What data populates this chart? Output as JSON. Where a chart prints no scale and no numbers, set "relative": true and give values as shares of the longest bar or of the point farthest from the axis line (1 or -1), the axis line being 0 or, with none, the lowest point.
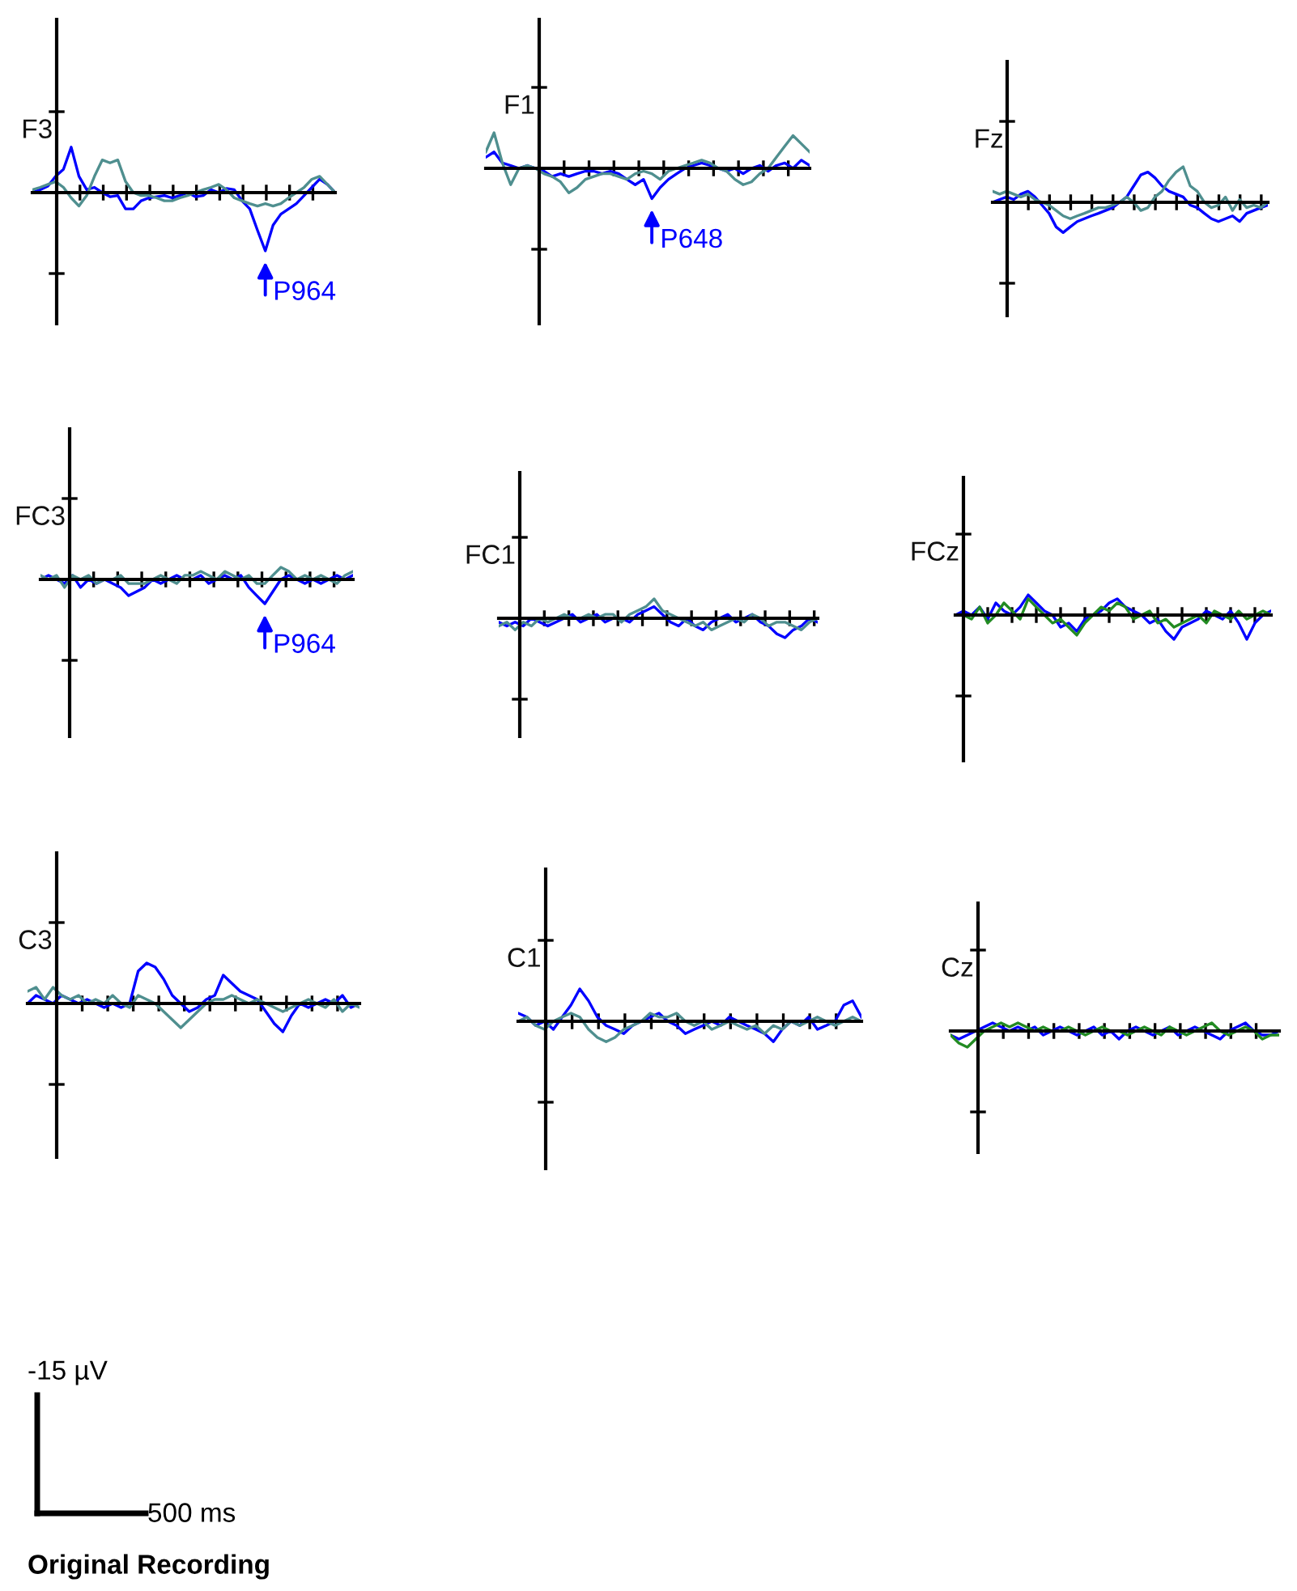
{
  "chart_data": [
    {
      "type": "line",
      "title": "F3",
      "relative": true,
      "categories": [
        null,
        null,
        null,
        null,
        null,
        null,
        null,
        null,
        null,
        null,
        null,
        null,
        null,
        null,
        null,
        null,
        null,
        null,
        null,
        null,
        null,
        null,
        null,
        null,
        null,
        null,
        null,
        null,
        null,
        null,
        null,
        null,
        null,
        null,
        null,
        null,
        null,
        null,
        null,
        null
      ],
      "annotations": [
        "P964"
      ],
      "series": [
        {
          "color": "#0000ff",
          "values": [
            0,
            0.05,
            0.11,
            0.28,
            0.4,
            0.78,
            0.28,
            0.05,
            0.09,
            0,
            -0.07,
            -0.05,
            -0.28,
            -0.28,
            -0.14,
            -0.09,
            -0.07,
            -0.05,
            -0.09,
            -0.05,
            0,
            -0.07,
            -0.05,
            0.05,
            0,
            0.07,
            0.05,
            -0.14,
            -0.28,
            -0.65,
            -1,
            -0.56,
            -0.37,
            -0.28,
            -0.19,
            -0.05,
            0.09,
            0.23,
            0.14,
            0
          ]
        },
        {
          "color": "#4f8f8f",
          "values": [
            0.05,
            0.09,
            0.14,
            0.19,
            0.09,
            -0.09,
            -0.23,
            -0.05,
            0.28,
            0.56,
            0.51,
            0.56,
            0.19,
            0,
            -0.05,
            -0.05,
            -0.09,
            -0.14,
            -0.14,
            -0.09,
            -0.05,
            0,
            0.05,
            0.09,
            0.14,
            0.05,
            -0.09,
            -0.14,
            -0.19,
            -0.23,
            -0.19,
            -0.23,
            -0.19,
            -0.09,
            0,
            0.09,
            0.23,
            0.28,
            0.14,
            0
          ]
        }
      ]
    },
    {
      "type": "line",
      "title": "F1",
      "relative": true,
      "categories": [
        null,
        null,
        null,
        null,
        null,
        null,
        null,
        null,
        null,
        null,
        null,
        null,
        null,
        null,
        null,
        null,
        null,
        null,
        null,
        null,
        null,
        null,
        null,
        null,
        null,
        null,
        null,
        null,
        null,
        null,
        null,
        null,
        null,
        null,
        null,
        null,
        null,
        null,
        null,
        null
      ],
      "annotations": [
        "P648"
      ],
      "series": [
        {
          "color": "#0000ff",
          "values": [
            0.31,
            0.46,
            0.15,
            0.08,
            0,
            0.08,
            0,
            -0.08,
            -0.23,
            -0.15,
            -0.23,
            -0.15,
            -0.08,
            -0.08,
            -0.15,
            -0.08,
            -0.15,
            -0.31,
            -0.46,
            -0.31,
            -0.85,
            -0.54,
            -0.31,
            -0.15,
            0,
            0.08,
            0.15,
            0.08,
            0,
            -0.08,
            0,
            -0.15,
            0,
            0.08,
            -0.08,
            0.08,
            0.15,
            0,
            0.23,
            0.08
          ]
        },
        {
          "color": "#4f8f8f",
          "values": [
            0.46,
            1,
            0.15,
            -0.46,
            0,
            0.08,
            0,
            -0.15,
            -0.23,
            -0.38,
            -0.69,
            -0.54,
            -0.31,
            -0.23,
            -0.15,
            -0.15,
            -0.23,
            -0.31,
            -0.15,
            -0.08,
            -0.15,
            -0.31,
            -0.08,
            0,
            0.08,
            0.15,
            0.23,
            0.15,
            0,
            -0.08,
            -0.31,
            -0.46,
            -0.38,
            -0.15,
            0,
            0.31,
            0.62,
            0.92,
            0.69,
            0.46
          ]
        }
      ]
    },
    {
      "type": "line",
      "title": "Fz",
      "relative": true,
      "categories": [
        null,
        null,
        null,
        null,
        null,
        null,
        null,
        null,
        null,
        null,
        null,
        null,
        null,
        null,
        null,
        null,
        null,
        null,
        null,
        null,
        null,
        null,
        null,
        null,
        null,
        null,
        null,
        null,
        null,
        null,
        null,
        null,
        null,
        null,
        null,
        null,
        null,
        null,
        null,
        null
      ],
      "series": [
        {
          "color": "#0000ff",
          "values": [
            0,
            0.08,
            0.15,
            0.08,
            0.23,
            0.31,
            0.15,
            -0.08,
            -0.31,
            -0.69,
            -0.85,
            -0.69,
            -0.54,
            -0.46,
            -0.38,
            -0.31,
            -0.23,
            -0.15,
            0,
            0.15,
            0.46,
            0.77,
            0.85,
            0.69,
            0.46,
            0.31,
            0.23,
            0.15,
            -0.08,
            -0.15,
            -0.31,
            -0.46,
            -0.54,
            -0.46,
            -0.38,
            -0.54,
            -0.31,
            -0.23,
            -0.15,
            -0.08
          ]
        },
        {
          "color": "#4f8f8f",
          "values": [
            0.31,
            0.23,
            0.31,
            0.23,
            0.15,
            0.23,
            0.08,
            0,
            -0.08,
            -0.23,
            -0.38,
            -0.46,
            -0.38,
            -0.31,
            -0.23,
            -0.15,
            -0.15,
            -0.08,
            0,
            0.15,
            0,
            -0.23,
            -0.15,
            0.15,
            0.31,
            0.62,
            0.85,
            1,
            0.46,
            0.31,
            0,
            -0.15,
            -0.08,
            0.15,
            -0.23,
            0.08,
            -0.15,
            -0.08,
            -0.15,
            0
          ]
        }
      ]
    },
    {
      "type": "line",
      "title": "FC3",
      "relative": true,
      "categories": [
        null,
        null,
        null,
        null,
        null,
        null,
        null,
        null,
        null,
        null,
        null,
        null,
        null,
        null,
        null,
        null,
        null,
        null,
        null,
        null,
        null,
        null,
        null,
        null,
        null,
        null,
        null,
        null,
        null,
        null,
        null,
        null,
        null,
        null,
        null,
        null,
        null,
        null,
        null,
        null
      ],
      "annotations": [
        "P964"
      ],
      "series": [
        {
          "color": "#0000ff",
          "values": [
            0,
            0.17,
            0,
            -0.17,
            0.17,
            -0.33,
            0,
            -0.17,
            0,
            -0.17,
            -0.33,
            -0.67,
            -0.5,
            -0.33,
            0,
            -0.17,
            0,
            0.17,
            0,
            0,
            0.17,
            -0.17,
            0,
            0.17,
            0,
            0.17,
            -0.33,
            -0.67,
            -1,
            -0.5,
            0,
            0.17,
            0,
            -0.17,
            0,
            -0.17,
            0,
            0.17,
            0,
            0.17
          ]
        },
        {
          "color": "#4f8f8f",
          "values": [
            0.17,
            0,
            0.17,
            -0.33,
            0.17,
            0,
            0.17,
            -0.17,
            0,
            0,
            0.17,
            -0.17,
            -0.17,
            -0.17,
            0,
            0.17,
            0,
            -0.17,
            0.17,
            0.17,
            0.33,
            0.17,
            0,
            0.33,
            0.17,
            0,
            0.17,
            -0.17,
            -0.17,
            0.17,
            0.5,
            0.33,
            0,
            0.17,
            0,
            0.17,
            0,
            -0.17,
            0.17,
            0.33
          ]
        }
      ]
    },
    {
      "type": "line",
      "title": "FC1",
      "relative": true,
      "categories": [
        null,
        null,
        null,
        null,
        null,
        null,
        null,
        null,
        null,
        null,
        null,
        null,
        null,
        null,
        null,
        null,
        null,
        null,
        null,
        null,
        null,
        null,
        null,
        null,
        null,
        null,
        null,
        null,
        null,
        null,
        null,
        null,
        null,
        null,
        null,
        null,
        null,
        null,
        null,
        null
      ],
      "series": [
        {
          "color": "#0000ff",
          "values": [
            -0.2,
            -0.4,
            -0.2,
            -0.4,
            0,
            -0.2,
            -0.4,
            -0.2,
            0,
            0.2,
            -0.2,
            0,
            0.2,
            -0.2,
            0,
            0,
            -0.2,
            0.2,
            0.4,
            0.6,
            0.2,
            -0.2,
            -0.4,
            0,
            -0.4,
            -0.6,
            -0.2,
            0,
            0.2,
            -0.2,
            0,
            0.2,
            -0.2,
            -0.4,
            -0.8,
            -1,
            -0.6,
            -0.4,
            0,
            -0.2
          ]
        },
        {
          "color": "#4f8f8f",
          "values": [
            -0.4,
            -0.2,
            -0.6,
            -0.2,
            -0.4,
            0,
            -0.2,
            0,
            0.2,
            0,
            0,
            0.2,
            0,
            0.2,
            0.2,
            -0.2,
            0.2,
            0.4,
            0.6,
            1,
            0.4,
            0.2,
            0,
            -0.2,
            -0.4,
            -0.2,
            -0.6,
            -0.4,
            -0.2,
            0,
            -0.2,
            0.2,
            0,
            -0.4,
            -0.2,
            -0.2,
            -0.4,
            -0.6,
            -0.2,
            0
          ]
        }
      ]
    },
    {
      "type": "line",
      "title": "FCz",
      "relative": true,
      "categories": [
        null,
        null,
        null,
        null,
        null,
        null,
        null,
        null,
        null,
        null,
        null,
        null,
        null,
        null,
        null,
        null,
        null,
        null,
        null,
        null,
        null,
        null,
        null,
        null,
        null,
        null,
        null,
        null,
        null,
        null,
        null,
        null,
        null,
        null,
        null,
        null,
        null,
        null,
        null,
        null
      ],
      "series": [
        {
          "color": "#0000ff",
          "values": [
            0,
            0.17,
            0,
            0.33,
            -0.17,
            0.5,
            0.17,
            0,
            0.33,
            0.83,
            0.5,
            0.17,
            0,
            -0.5,
            -0.33,
            -0.67,
            -0.17,
            0,
            0.17,
            0.5,
            0.67,
            0.33,
            0.17,
            0,
            -0.33,
            -0.17,
            -0.67,
            -1,
            -0.5,
            -0.33,
            -0.17,
            0.17,
            0,
            -0.17,
            0.17,
            -0.33,
            -1,
            -0.33,
            0,
            0.17
          ]
        },
        {
          "color": "#228b22",
          "values": [
            0,
            0,
            -0.17,
            0.33,
            -0.33,
            0,
            0.5,
            0.17,
            -0.17,
            0.67,
            0.33,
            0,
            -0.33,
            -0.17,
            -0.5,
            -0.83,
            -0.33,
            0,
            0.33,
            0.17,
            0.5,
            0.33,
            -0.17,
            0,
            0.17,
            -0.33,
            -0.17,
            -0.5,
            -0.33,
            -0.17,
            0,
            -0.33,
            0.17,
            0,
            -0.17,
            0.17,
            -0.17,
            0,
            0.17,
            0
          ]
        }
      ]
    },
    {
      "type": "line",
      "title": "C3",
      "relative": true,
      "categories": [
        null,
        null,
        null,
        null,
        null,
        null,
        null,
        null,
        null,
        null,
        null,
        null,
        null,
        null,
        null,
        null,
        null,
        null,
        null,
        null,
        null,
        null,
        null,
        null,
        null,
        null,
        null,
        null,
        null,
        null,
        null,
        null,
        null,
        null,
        null,
        null,
        null,
        null,
        null,
        null
      ],
      "series": [
        {
          "color": "#0000ff",
          "values": [
            0,
            0.2,
            0.1,
            0,
            0.2,
            0.1,
            0,
            0.1,
            0,
            -0.1,
            0,
            -0.1,
            0,
            0.8,
            1,
            0.9,
            0.6,
            0.2,
            0,
            -0.2,
            -0.1,
            0.1,
            0.2,
            0.7,
            0.5,
            0.3,
            0.2,
            0.1,
            -0.2,
            -0.5,
            -0.7,
            -0.3,
            0,
            -0.1,
            0,
            0.1,
            0,
            0.2,
            -0.1,
            0
          ]
        },
        {
          "color": "#4f8f8f",
          "values": [
            0.3,
            0.4,
            0.1,
            0.4,
            0.2,
            0.1,
            0.2,
            0,
            0.1,
            0,
            0.2,
            0,
            -0.1,
            0.2,
            0.1,
            0,
            -0.2,
            -0.4,
            -0.6,
            -0.4,
            -0.2,
            0,
            0.1,
            0.1,
            0.2,
            0.1,
            0,
            0.1,
            0,
            -0.1,
            -0.2,
            -0.1,
            0,
            0.1,
            0,
            -0.1,
            0.1,
            -0.2,
            0,
            -0.1
          ]
        }
      ]
    },
    {
      "type": "line",
      "title": "C1",
      "relative": true,
      "categories": [
        null,
        null,
        null,
        null,
        null,
        null,
        null,
        null,
        null,
        null,
        null,
        null,
        null,
        null,
        null,
        null,
        null,
        null,
        null,
        null,
        null,
        null,
        null,
        null,
        null,
        null,
        null,
        null,
        null,
        null,
        null,
        null,
        null,
        null,
        null,
        null,
        null,
        null,
        null,
        null
      ],
      "series": [
        {
          "color": "#0000ff",
          "values": [
            0.25,
            0.13,
            -0.13,
            0,
            -0.25,
            0.13,
            0.5,
            1,
            0.63,
            0.13,
            -0.13,
            -0.25,
            -0.38,
            -0.13,
            0,
            0.13,
            0.25,
            0,
            -0.13,
            -0.38,
            -0.25,
            -0.13,
            0,
            -0.13,
            0.13,
            0,
            -0.13,
            -0.25,
            -0.38,
            -0.63,
            -0.25,
            0,
            -0.13,
            0.13,
            -0.25,
            -0.13,
            0,
            0.5,
            0.63,
            0.13
          ]
        },
        {
          "color": "#4f8f8f",
          "values": [
            0,
            0.13,
            -0.13,
            -0.25,
            0,
            0.13,
            0.25,
            0.13,
            -0.25,
            -0.5,
            -0.63,
            -0.5,
            -0.25,
            -0.13,
            0,
            0.25,
            0.13,
            0.13,
            0.25,
            0,
            -0.13,
            0,
            -0.25,
            -0.13,
            0,
            -0.13,
            -0.25,
            -0.13,
            -0.38,
            -0.13,
            -0.25,
            0,
            -0.13,
            0,
            0.13,
            0,
            -0.13,
            0,
            0.13,
            0
          ]
        }
      ]
    },
    {
      "type": "line",
      "title": "Cz",
      "relative": true,
      "categories": [
        null,
        null,
        null,
        null,
        null,
        null,
        null,
        null,
        null,
        null,
        null,
        null,
        null,
        null,
        null,
        null,
        null,
        null,
        null,
        null,
        null,
        null,
        null,
        null,
        null,
        null,
        null,
        null,
        null,
        null,
        null,
        null,
        null,
        null,
        null,
        null,
        null,
        null,
        null,
        null
      ],
      "series": [
        {
          "color": "#0000ff",
          "values": [
            -0.25,
            -0.5,
            -0.25,
            0,
            0.25,
            0.5,
            0.25,
            0,
            0.25,
            0,
            0.25,
            -0.25,
            0,
            0.25,
            0,
            -0.25,
            0,
            0.25,
            -0.25,
            0,
            -0.5,
            0,
            0.25,
            0,
            -0.25,
            0,
            0.25,
            -0.25,
            0,
            0.25,
            0,
            -0.25,
            -0.5,
            0,
            0.25,
            0.5,
            0,
            -0.25,
            -0.25,
            0
          ]
        },
        {
          "color": "#228b22",
          "values": [
            -0.25,
            -0.75,
            -1,
            -0.5,
            0,
            0.25,
            0.5,
            0.25,
            0.5,
            0.25,
            0,
            0.25,
            0,
            0,
            0.25,
            0,
            -0.25,
            0,
            0.25,
            0,
            0,
            -0.25,
            0,
            0.25,
            0,
            -0.25,
            0.25,
            0,
            -0.25,
            0,
            0.25,
            0.5,
            0,
            -0.25,
            0,
            0.25,
            0,
            -0.5,
            -0.25,
            -0.25
          ]
        }
      ]
    },
    {
      "type": "other",
      "annotations": [
        "-15 µV",
        "500 ms",
        "Original Recording"
      ]
    }
  ]
}
